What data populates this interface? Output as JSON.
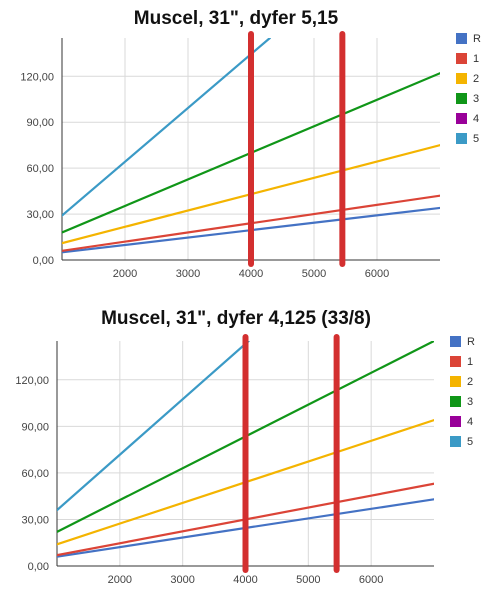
{
  "chart_data": [
    {
      "type": "line",
      "title": "Muscel, 31\", dyfer 5,15",
      "xlabel": "",
      "ylabel": "",
      "x_ticks": [
        "2000",
        "3000",
        "4000",
        "5000",
        "6000"
      ],
      "y_ticks": [
        "0,00",
        "30,00",
        "60,00",
        "90,00",
        "120,00"
      ],
      "xlim": [
        1000,
        7000
      ],
      "ylim": [
        0,
        145
      ],
      "grid": true,
      "legend_position": "right",
      "markers": [
        4000,
        5450
      ],
      "marker_color": "#d32f2f",
      "series": [
        {
          "name": "R",
          "color": "#4472c4",
          "x": [
            1000,
            7000
          ],
          "y": [
            5,
            34
          ]
        },
        {
          "name": "1",
          "color": "#db4437",
          "x": [
            1000,
            7000
          ],
          "y": [
            6,
            42
          ]
        },
        {
          "name": "2",
          "color": "#f4b400",
          "x": [
            1000,
            7000
          ],
          "y": [
            11,
            75
          ]
        },
        {
          "name": "3",
          "color": "#109618",
          "x": [
            1000,
            7000
          ],
          "y": [
            18,
            122
          ]
        },
        {
          "name": "4",
          "color": "#990099",
          "x": [],
          "y": []
        },
        {
          "name": "5",
          "color": "#3b9ac6",
          "x": [
            1000,
            4300
          ],
          "y": [
            29,
            145
          ]
        }
      ]
    },
    {
      "type": "line",
      "title": "Muscel, 31\", dyfer 4,125 (33/8)",
      "xlabel": "",
      "ylabel": "",
      "x_ticks": [
        "2000",
        "3000",
        "4000",
        "5000",
        "6000"
      ],
      "y_ticks": [
        "0,00",
        "30,00",
        "60,00",
        "90,00",
        "120,00"
      ],
      "xlim": [
        1000,
        7000
      ],
      "ylim": [
        0,
        145
      ],
      "grid": true,
      "legend_position": "right",
      "markers": [
        4000,
        5450
      ],
      "marker_color": "#d32f2f",
      "series": [
        {
          "name": "R",
          "color": "#4472c4",
          "x": [
            1000,
            7000
          ],
          "y": [
            6,
            43
          ]
        },
        {
          "name": "1",
          "color": "#db4437",
          "x": [
            1000,
            7000
          ],
          "y": [
            7,
            53
          ]
        },
        {
          "name": "2",
          "color": "#f4b400",
          "x": [
            1000,
            7000
          ],
          "y": [
            14,
            94
          ]
        },
        {
          "name": "3",
          "color": "#109618",
          "x": [
            1000,
            7000
          ],
          "y": [
            22,
            145
          ]
        },
        {
          "name": "4",
          "color": "#990099",
          "x": [],
          "y": []
        },
        {
          "name": "5",
          "color": "#3b9ac6",
          "x": [
            1000,
            4050
          ],
          "y": [
            36,
            145
          ]
        }
      ]
    }
  ]
}
